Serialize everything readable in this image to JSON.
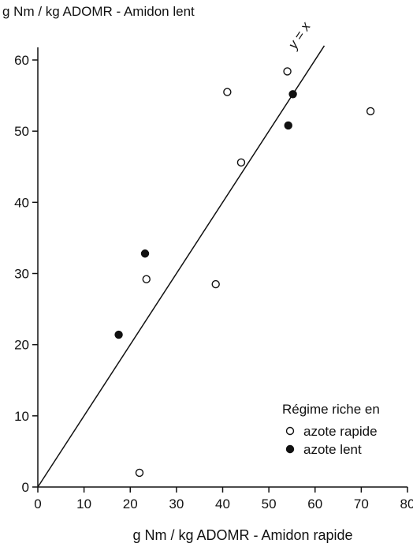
{
  "chart_data": {
    "type": "scatter",
    "title": "",
    "ylabel": "g Nm / kg ADOMR - Amidon lent",
    "xlabel": "g Nm / kg ADOMR - Amidon rapide",
    "xlim": [
      0,
      80
    ],
    "ylim": [
      0,
      60
    ],
    "xticks": [
      0,
      10,
      20,
      30,
      40,
      50,
      60,
      70,
      80
    ],
    "yticks": [
      0,
      10,
      20,
      30,
      40,
      50,
      60
    ],
    "grid": false,
    "reference_line": {
      "label": "y = x",
      "from": [
        0,
        0
      ],
      "to": [
        62,
        62
      ]
    },
    "legend": {
      "title": "Régime riche en",
      "position": "bottom-right",
      "entries": [
        {
          "label": "azote rapide",
          "marker": "open-circle"
        },
        {
          "label": "azote lent",
          "marker": "filled-circle"
        }
      ]
    },
    "series": [
      {
        "name": "azote rapide",
        "marker": "open-circle",
        "points": [
          {
            "x": 22,
            "y": 2
          },
          {
            "x": 23.5,
            "y": 29.2
          },
          {
            "x": 38.5,
            "y": 28.5
          },
          {
            "x": 41,
            "y": 55.5
          },
          {
            "x": 44,
            "y": 45.6
          },
          {
            "x": 54,
            "y": 58.4
          },
          {
            "x": 72,
            "y": 52.8
          }
        ]
      },
      {
        "name": "azote lent",
        "marker": "filled-circle",
        "points": [
          {
            "x": 17.5,
            "y": 21.4
          },
          {
            "x": 23.2,
            "y": 32.8
          },
          {
            "x": 54.2,
            "y": 50.8
          },
          {
            "x": 55.2,
            "y": 55.2
          }
        ]
      }
    ]
  }
}
